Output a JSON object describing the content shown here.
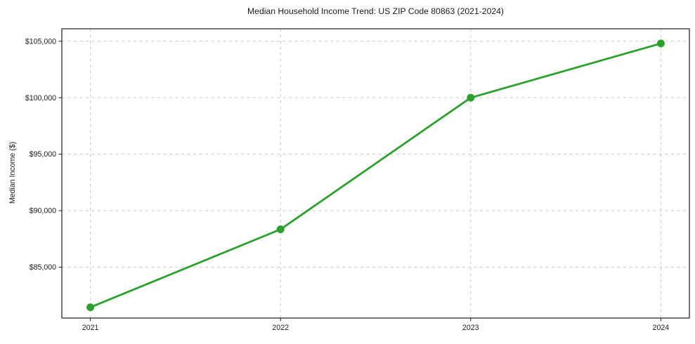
{
  "chart_data": {
    "type": "line",
    "title": "Median Household Income Trend: US ZIP Code 80863 (2021-2024)",
    "xlabel": "",
    "ylabel": "Median Income ($)",
    "x": [
      2021,
      2022,
      2023,
      2024
    ],
    "values": [
      81450,
      88350,
      100000,
      104800
    ],
    "xlim": [
      2020.85,
      2024.15
    ],
    "ylim": [
      80500,
      106100
    ],
    "xticks": [
      {
        "value": 2021,
        "label": "2021"
      },
      {
        "value": 2022,
        "label": "2022"
      },
      {
        "value": 2023,
        "label": "2023"
      },
      {
        "value": 2024,
        "label": "2024"
      }
    ],
    "yticks": [
      {
        "value": 85000,
        "label": "$85,000"
      },
      {
        "value": 90000,
        "label": "$90,000"
      },
      {
        "value": 95000,
        "label": "$95,000"
      },
      {
        "value": 100000,
        "label": "$100,000"
      },
      {
        "value": 105000,
        "label": "$105,000"
      }
    ],
    "grid": true,
    "grid_style": "dashed",
    "legend": null,
    "line_color": "#2ca02c",
    "marker": "circle",
    "marker_color": "#2ca02c",
    "background_color": "#ffffff"
  }
}
